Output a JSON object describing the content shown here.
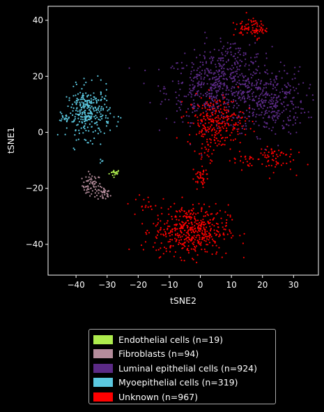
{
  "chart_data": {
    "type": "scatter",
    "xlabel": "tSNE2",
    "ylabel": "tSNE1",
    "xlim": [
      -49,
      38
    ],
    "ylim": [
      -51,
      45
    ],
    "xticks": [
      -40,
      -30,
      -20,
      -10,
      0,
      10,
      20,
      30
    ],
    "yticks": [
      -40,
      -20,
      0,
      20,
      40
    ],
    "grid": false,
    "legend_position": "below",
    "series": [
      {
        "name": "Endothelial cells (n=19)",
        "color": "#adeb4d",
        "n": 19,
        "clusters": [
          {
            "cx": -27.5,
            "cy": -14.5,
            "sx": 0.9,
            "sy": 0.6,
            "n": 19
          }
        ]
      },
      {
        "name": "Fibroblasts (n=94)",
        "color": "#b48c9b",
        "n": 94,
        "clusters": [
          {
            "cx": -35,
            "cy": -19,
            "sx": 1.5,
            "sy": 2.0,
            "n": 60
          },
          {
            "cx": -31,
            "cy": -22,
            "sx": 1.0,
            "sy": 1.2,
            "n": 34
          }
        ]
      },
      {
        "name": "Luminal epithelial cells (n=924)",
        "color": "#5b2a86",
        "n": 924,
        "clusters": [
          {
            "cx": 5,
            "cy": 16,
            "sx": 8,
            "sy": 6,
            "n": 500
          },
          {
            "cx": 22,
            "cy": 11,
            "sx": 6,
            "sy": 6,
            "n": 350
          },
          {
            "cx": 10,
            "cy": 27,
            "sx": 5,
            "sy": 3,
            "n": 74
          }
        ]
      },
      {
        "name": "Myoepithelial cells (n=319)",
        "color": "#5bc8e0",
        "n": 319,
        "clusters": [
          {
            "cx": -36,
            "cy": 7,
            "sx": 3.5,
            "sy": 4.5,
            "n": 300
          },
          {
            "cx": -32,
            "cy": -10.5,
            "sx": 0.4,
            "sy": 0.6,
            "n": 4
          },
          {
            "cx": -43,
            "cy": 5,
            "sx": 1.2,
            "sy": 1.0,
            "n": 15
          }
        ]
      },
      {
        "name": "Unknown (n=967)",
        "color": "#ff0000",
        "n": 967,
        "clusters": [
          {
            "cx": -3,
            "cy": -35,
            "sx": 6,
            "sy": 4.5,
            "n": 470
          },
          {
            "cx": 5,
            "cy": 4,
            "sx": 4.5,
            "sy": 4.5,
            "n": 260
          },
          {
            "cx": 18,
            "cy": 37,
            "sx": 1.6,
            "sy": 1.6,
            "n": 55
          },
          {
            "cx": 13,
            "cy": 37,
            "sx": 1.6,
            "sy": 1.6,
            "n": 25
          },
          {
            "cx": 23,
            "cy": -9,
            "sx": 3.5,
            "sy": 2.5,
            "n": 65
          },
          {
            "cx": 14,
            "cy": -10,
            "sx": 2.0,
            "sy": 1.5,
            "n": 20
          },
          {
            "cx": 0,
            "cy": -16,
            "sx": 1.3,
            "sy": 2.0,
            "n": 40
          },
          {
            "cx": -18,
            "cy": -25,
            "sx": 1.5,
            "sy": 1.5,
            "n": 12
          },
          {
            "cx": 3,
            "cy": -8,
            "sx": 2.0,
            "sy": 3.0,
            "n": 20
          }
        ]
      }
    ]
  }
}
